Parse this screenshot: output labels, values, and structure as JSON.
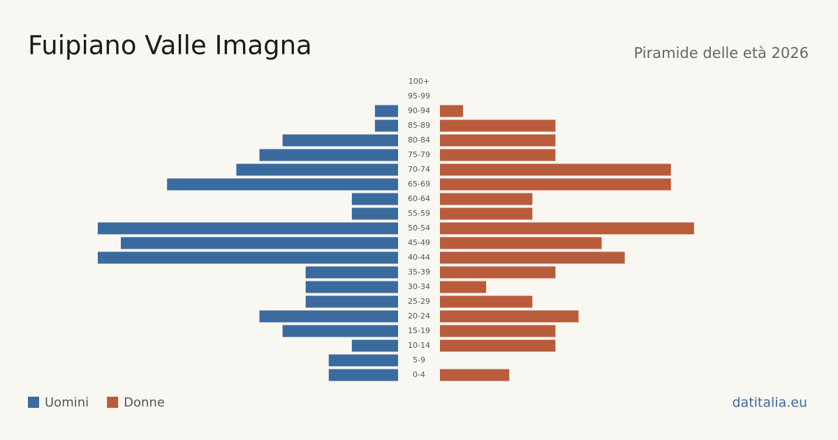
{
  "chart_data": {
    "type": "pyramid",
    "title": "Fuipiano Valle Imagna",
    "subtitle": "Piramide delle età 2026",
    "source": "datitalia.eu",
    "categories": [
      "100+",
      "95-99",
      "90-94",
      "85-89",
      "80-84",
      "75-79",
      "70-74",
      "65-69",
      "60-64",
      "55-59",
      "50-54",
      "45-49",
      "40-44",
      "35-39",
      "30-34",
      "25-29",
      "20-24",
      "15-19",
      "10-14",
      "5-9",
      "0-4"
    ],
    "series": [
      {
        "name": "Uomini",
        "color": "#3a6a9e",
        "values": [
          0,
          0,
          1,
          1,
          5,
          6,
          7,
          10,
          2,
          2,
          13,
          12,
          13,
          4,
          4,
          4,
          6,
          5,
          2,
          3,
          3
        ]
      },
      {
        "name": "Donne",
        "color": "#b95c3c",
        "values": [
          0,
          0,
          1,
          5,
          5,
          5,
          10,
          10,
          4,
          4,
          11,
          7,
          8,
          5,
          2,
          4,
          6,
          5,
          5,
          0,
          3
        ]
      }
    ]
  }
}
